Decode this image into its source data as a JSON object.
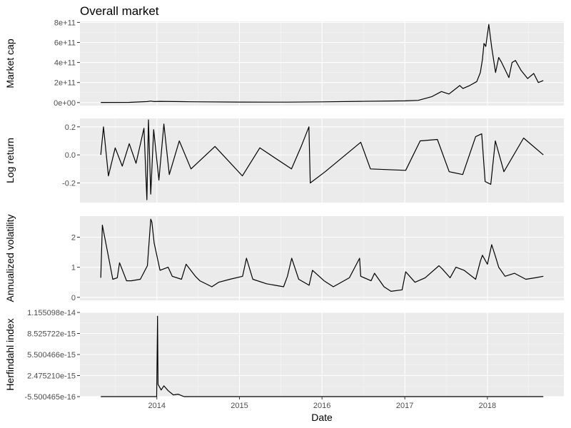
{
  "chart_data": {
    "type": "line",
    "title": "Overall market",
    "xlabel": "Date",
    "x_ticks": [
      "2014",
      "2015",
      "2016",
      "2017",
      "2018"
    ],
    "xlim": [
      "2013-01-26",
      "2018-12-05"
    ],
    "panels": [
      {
        "ylabel": "Market cap",
        "y_ticks": [
          "0e+00",
          "2e+11",
          "4e+11",
          "6e+11",
          "8e+11"
        ],
        "ylim": [
          -30000000000,
          810000000000
        ],
        "series": [
          {
            "x": [
              "2013-04-28",
              "2013-09-01",
              "2013-11-20",
              "2013-12-04",
              "2013-12-20",
              "2014-01-15",
              "2014-06-01",
              "2015-01-01",
              "2015-08-01",
              "2016-01-01",
              "2016-06-15",
              "2017-01-01",
              "2017-03-01",
              "2017-05-01",
              "2017-06-12",
              "2017-07-15",
              "2017-08-15",
              "2017-09-01",
              "2017-09-15",
              "2017-10-15",
              "2017-11-15",
              "2017-12-01",
              "2017-12-10",
              "2017-12-17",
              "2017-12-25",
              "2018-01-07",
              "2018-01-20",
              "2018-02-06",
              "2018-02-20",
              "2018-03-05",
              "2018-04-06",
              "2018-04-20",
              "2018-05-05",
              "2018-05-30",
              "2018-06-28",
              "2018-07-25",
              "2018-08-14",
              "2018-09-05"
            ],
            "y": [
              1500000000,
              1800000000,
              10000000000,
              15000000000,
              10000000000,
              12000000000,
              8000000000,
              5000000000,
              4500000000,
              7000000000,
              12000000000,
              17000000000,
              22000000000,
              60000000000,
              110000000000,
              85000000000,
              140000000000,
              170000000000,
              140000000000,
              170000000000,
              210000000000,
              300000000000,
              430000000000,
              590000000000,
              560000000000,
              780000000000,
              550000000000,
              300000000000,
              450000000000,
              400000000000,
              250000000000,
              400000000000,
              420000000000,
              320000000000,
              240000000000,
              290000000000,
              200000000000,
              220000000000
            ]
          }
        ]
      },
      {
        "ylabel": "Log return",
        "y_ticks": [
          "-0.2",
          "0.0",
          "0.2"
        ],
        "ylim": [
          -0.34,
          0.26
        ],
        "series": [
          {
            "x": [
              "2013-04-28",
              "2013-05-10",
              "2013-06-01",
              "2013-07-01",
              "2013-08-01",
              "2013-09-01",
              "2013-10-01",
              "2013-11-05",
              "2013-11-18",
              "2013-11-25",
              "2013-12-05",
              "2013-12-18",
              "2014-01-10",
              "2014-02-01",
              "2014-02-25",
              "2014-04-10",
              "2014-06-01",
              "2014-09-15",
              "2015-01-14",
              "2015-04-01",
              "2015-08-19",
              "2015-10-01",
              "2015-11-04",
              "2015-11-10",
              "2016-01-15",
              "2016-06-20",
              "2016-08-02",
              "2017-01-05",
              "2017-03-10",
              "2017-05-25",
              "2017-07-16",
              "2017-09-14",
              "2017-11-10",
              "2017-12-07",
              "2017-12-22",
              "2018-01-16",
              "2018-02-05",
              "2018-03-15",
              "2018-06-10",
              "2018-09-05"
            ],
            "y": [
              0.0,
              0.2,
              -0.15,
              0.05,
              -0.08,
              0.08,
              -0.06,
              0.19,
              -0.32,
              0.25,
              -0.28,
              0.18,
              -0.18,
              0.22,
              -0.14,
              0.1,
              -0.1,
              0.06,
              -0.15,
              0.05,
              -0.1,
              0.06,
              0.2,
              -0.2,
              -0.12,
              0.09,
              -0.1,
              -0.11,
              0.1,
              0.11,
              -0.12,
              -0.14,
              0.13,
              0.15,
              -0.19,
              -0.21,
              0.1,
              -0.12,
              0.12,
              0.0
            ]
          }
        ]
      },
      {
        "ylabel": "Annualized volatility",
        "y_ticks": [
          "0",
          "1",
          "2"
        ],
        "ylim": [
          -0.1,
          2.7
        ],
        "series": [
          {
            "x": [
              "2013-04-28",
              "2013-05-05",
              "2013-06-05",
              "2013-06-20",
              "2013-07-10",
              "2013-07-20",
              "2013-08-20",
              "2013-09-10",
              "2013-10-20",
              "2013-11-20",
              "2013-12-05",
              "2013-12-10",
              "2013-12-20",
              "2014-01-15",
              "2014-02-20",
              "2014-03-10",
              "2014-04-20",
              "2014-05-10",
              "2014-06-20",
              "2014-07-10",
              "2014-09-01",
              "2014-10-01",
              "2014-11-20",
              "2015-01-15",
              "2015-02-01",
              "2015-03-01",
              "2015-05-01",
              "2015-07-15",
              "2015-08-01",
              "2015-08-20",
              "2015-09-20",
              "2015-11-05",
              "2015-11-20",
              "2016-01-10",
              "2016-02-20",
              "2016-05-01",
              "2016-06-15",
              "2016-06-20",
              "2016-08-05",
              "2016-08-20",
              "2016-10-01",
              "2016-11-01",
              "2016-12-20",
              "2017-01-05",
              "2017-02-15",
              "2017-04-01",
              "2017-06-01",
              "2017-06-15",
              "2017-07-20",
              "2017-08-15",
              "2017-09-20",
              "2017-11-10",
              "2017-12-01",
              "2017-12-10",
              "2018-01-01",
              "2018-01-20",
              "2018-02-06",
              "2018-02-20",
              "2018-03-20",
              "2018-05-01",
              "2018-06-20",
              "2018-08-01",
              "2018-09-05"
            ],
            "y": [
              0.65,
              2.4,
              1.2,
              0.6,
              0.65,
              1.15,
              0.55,
              0.55,
              0.6,
              1.05,
              2.6,
              2.5,
              1.8,
              0.9,
              1.0,
              0.7,
              0.6,
              1.1,
              0.7,
              0.55,
              0.35,
              0.5,
              0.6,
              0.7,
              1.3,
              0.6,
              0.45,
              0.35,
              0.7,
              1.3,
              0.6,
              0.4,
              0.9,
              0.55,
              0.35,
              0.65,
              1.3,
              0.7,
              0.55,
              0.8,
              0.35,
              0.2,
              0.25,
              0.85,
              0.5,
              0.65,
              1.05,
              0.95,
              0.65,
              1.0,
              0.9,
              0.6,
              1.2,
              1.4,
              1.1,
              1.75,
              1.35,
              1.0,
              0.7,
              0.8,
              0.6,
              0.65,
              0.7
            ]
          }
        ]
      },
      {
        "ylabel": "Herfindahl index",
        "y_ticks": [
          "-5.500465e-16",
          "2.475210e-15",
          "5.500466e-15",
          "8.525722e-15",
          "1.155098e-14"
        ],
        "ylim": [
          -5.500465e-16,
          1.155098e-14
        ],
        "series": [
          {
            "x": [
              "2013-04-28",
              "2013-12-31",
              "2014-01-04",
              "2014-01-06",
              "2014-01-10",
              "2014-01-20",
              "2014-02-01",
              "2014-02-20",
              "2014-03-15",
              "2014-04-05",
              "2014-05-01",
              "2018-09-05"
            ],
            "y": [
              -5.5e-16,
              -5.5e-16,
              1.1e-14,
              1.2e-15,
              1e-15,
              4e-16,
              1e-15,
              3e-16,
              -3e-16,
              -2e-16,
              -5.5e-16,
              -5.5e-16
            ]
          }
        ]
      }
    ]
  }
}
